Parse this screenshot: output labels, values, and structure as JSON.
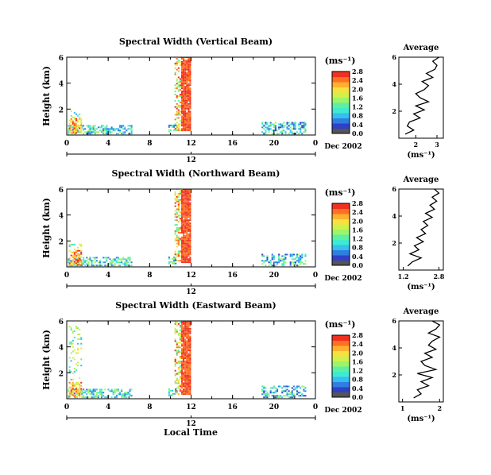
{
  "figure": {
    "xlabel": "Local Time",
    "date_label": "Dec 2002",
    "day_label": "12",
    "ylabel": "Height (km)",
    "colorbar_unit": "(ms⁻¹)",
    "profile_title": "Average",
    "profile_xlabel": "(ms⁻¹)"
  },
  "colormap": [
    "#1a1a80",
    "#3040c8",
    "#2f7fe0",
    "#33bff0",
    "#40ead0",
    "#5ef0a0",
    "#9bf56a",
    "#d2f04a",
    "#f8e040",
    "#ffb030",
    "#ff7020",
    "#f03020"
  ],
  "chart_data": [
    {
      "type": "heatmap",
      "title": "Spectral Width (Vertical Beam)",
      "x_ticks": [
        "0",
        "4",
        "8",
        "12",
        "16",
        "20",
        "0"
      ],
      "x_range": [
        0,
        24
      ],
      "y_ticks": [
        "2",
        "4",
        "6"
      ],
      "y_range": [
        0,
        6
      ],
      "colorbar_ticks": [
        "0.0",
        "0.4",
        "0.8",
        "1.2",
        "1.6",
        "2.0",
        "2.4",
        "2.8"
      ],
      "colorbar_range": [
        0,
        3.0
      ],
      "profile": {
        "x_ticks": [
          "2",
          "3"
        ],
        "x_range": [
          1.2,
          3.3
        ],
        "y_ticks": [
          "2",
          "4",
          "6"
        ],
        "y_range": [
          0,
          6
        ],
        "heights": [
          0.3,
          0.6,
          0.9,
          1.2,
          1.5,
          1.8,
          2.1,
          2.4,
          2.7,
          3.0,
          3.3,
          3.6,
          3.9,
          4.2,
          4.5,
          4.8,
          5.1,
          5.4,
          5.7,
          6.0
        ],
        "values": [
          1.5,
          1.9,
          1.6,
          1.7,
          2.2,
          1.9,
          2.4,
          2.0,
          2.6,
          2.2,
          2.0,
          2.4,
          2.6,
          2.3,
          2.8,
          2.5,
          2.9,
          3.0,
          2.8,
          3.1
        ]
      }
    },
    {
      "type": "heatmap",
      "title": "Spectral Width (Northward Beam)",
      "x_ticks": [
        "0",
        "4",
        "8",
        "12",
        "16",
        "20",
        "0"
      ],
      "x_range": [
        0,
        24
      ],
      "y_ticks": [
        "2",
        "4",
        "6"
      ],
      "y_range": [
        0,
        6
      ],
      "colorbar_ticks": [
        "0.0",
        "0.4",
        "0.8",
        "1.2",
        "1.6",
        "2.0",
        "2.4",
        "2.8"
      ],
      "colorbar_range": [
        0,
        3.0
      ],
      "profile": {
        "x_ticks": [
          "1.2",
          "2.8"
        ],
        "x_range": [
          1.0,
          3.0
        ],
        "y_ticks": [
          "2",
          "4",
          "6"
        ],
        "y_range": [
          0,
          6
        ],
        "heights": [
          0.3,
          0.6,
          0.9,
          1.2,
          1.5,
          1.8,
          2.1,
          2.4,
          2.7,
          3.0,
          3.3,
          3.6,
          3.9,
          4.2,
          4.5,
          4.8,
          5.1,
          5.4,
          5.7,
          6.0
        ],
        "values": [
          1.4,
          1.6,
          2.0,
          1.5,
          1.9,
          1.7,
          2.1,
          1.8,
          2.2,
          2.0,
          2.3,
          2.1,
          2.5,
          2.2,
          2.6,
          2.4,
          2.7,
          2.5,
          2.8,
          2.6
        ]
      }
    },
    {
      "type": "heatmap",
      "title": "Spectral Width (Eastward Beam)",
      "x_ticks": [
        "0",
        "4",
        "8",
        "12",
        "16",
        "20",
        "0"
      ],
      "x_range": [
        0,
        24
      ],
      "y_ticks": [
        "2",
        "4",
        "6"
      ],
      "y_range": [
        0,
        6
      ],
      "colorbar_ticks": [
        "0.0",
        "0.4",
        "0.8",
        "1.2",
        "1.6",
        "2.0",
        "2.4",
        "2.8"
      ],
      "colorbar_range": [
        0,
        3.0
      ],
      "profile": {
        "x_ticks": [
          "1",
          "2"
        ],
        "x_range": [
          0.9,
          2.1
        ],
        "y_ticks": [
          "2",
          "4",
          "6"
        ],
        "y_range": [
          0,
          6
        ],
        "heights": [
          0.3,
          0.6,
          0.9,
          1.2,
          1.5,
          1.8,
          2.1,
          2.4,
          2.7,
          3.0,
          3.3,
          3.6,
          3.9,
          4.2,
          4.5,
          4.8,
          5.1,
          5.4,
          5.7,
          6.0
        ],
        "values": [
          1.3,
          1.5,
          1.4,
          1.7,
          1.5,
          1.8,
          1.4,
          1.9,
          1.6,
          1.5,
          1.8,
          1.6,
          1.9,
          1.7,
          1.8,
          2.0,
          1.7,
          1.9,
          2.0,
          1.8
        ]
      }
    }
  ]
}
